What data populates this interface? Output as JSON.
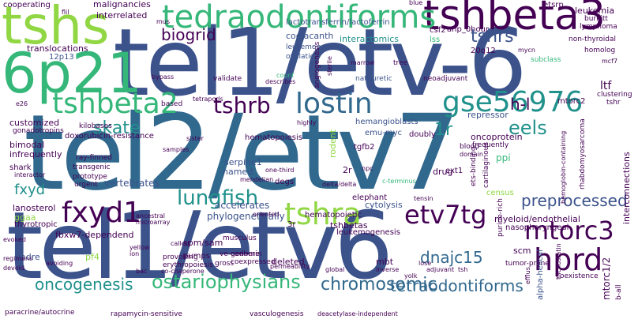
{
  "palette": {
    "dark_purple": "#440154",
    "indigo": "#3b528b",
    "blue": "#31688e",
    "teal": "#21918c",
    "green": "#35b779",
    "lime": "#90d743",
    "yellow_green": "#b5de2b"
  },
  "words": [
    {
      "id": "tel2-etv7",
      "text": "tel2/etv7"
    },
    {
      "id": "tel1-etv6-small",
      "text": "tel1/etv6"
    },
    {
      "id": "tel1-etv6-large",
      "text": "tel1/etv-6"
    },
    {
      "id": "tshs",
      "text": "tshs"
    },
    {
      "id": "6p21",
      "text": "6p21"
    },
    {
      "id": "tshbeta3",
      "text": "tshbeta3"
    },
    {
      "id": "tedraodontiforms",
      "text": "tedraodontiforms"
    },
    {
      "id": "tshbeta2",
      "text": "tshbeta2"
    },
    {
      "id": "lostin",
      "text": "lostin"
    },
    {
      "id": "gse56976",
      "text": "gse56976"
    },
    {
      "id": "tshrb",
      "text": "tshrb"
    },
    {
      "id": "fxyd1",
      "text": "fxyd1"
    },
    {
      "id": "hprd",
      "text": "hprd"
    },
    {
      "id": "mtorc3",
      "text": "mtorc3"
    },
    {
      "id": "etv7tg",
      "text": "etv7tg"
    },
    {
      "id": "tshra",
      "text": "tshra"
    },
    {
      "id": "lungfish",
      "text": "lungfish"
    },
    {
      "id": "preprocessed",
      "text": "preprocessed"
    },
    {
      "id": "chromosomic",
      "text": "chromosomic"
    },
    {
      "id": "tetraodontiforms",
      "text": "tetraodontiforms"
    },
    {
      "id": "ostariophysians",
      "text": "ostariophysians"
    },
    {
      "id": "oncogenesis",
      "text": "oncogenesis"
    },
    {
      "id": "dnajc15",
      "text": "dnajc15"
    },
    {
      "id": "biogrid",
      "text": "biogrid"
    },
    {
      "id": "tshrs",
      "text": "tshrs"
    },
    {
      "id": "skate",
      "text": "skate"
    },
    {
      "id": "eels",
      "text": "eels"
    },
    {
      "id": "1r",
      "text": "1r"
    },
    {
      "id": "h-l",
      "text": "h-l"
    },
    {
      "id": "fxyd",
      "text": "fxyd"
    },
    {
      "id": "cooperating",
      "text": "cooperating"
    },
    {
      "id": "malignancies",
      "text": "malignancies"
    },
    {
      "id": "interrelated",
      "text": "interrelated"
    },
    {
      "id": "lactotransferrin",
      "text": "lactotransferrin/lactoferrin"
    },
    {
      "id": "coelacanth",
      "text": "coelacanth"
    },
    {
      "id": "interactomics",
      "text": "interactomics"
    },
    {
      "id": "translocations",
      "text": "translocations"
    },
    {
      "id": "leukemogenic",
      "text": "leukemogenic"
    },
    {
      "id": "ovulation",
      "text": "ovulation"
    },
    {
      "id": "anp-0hour",
      "text": "anp_0hour"
    },
    {
      "id": "20q12",
      "text": "20q12"
    },
    {
      "id": "12p13",
      "text": "12p13"
    },
    {
      "id": "lss",
      "text": "lss"
    },
    {
      "id": "csf2",
      "text": "csf2"
    },
    {
      "id": "customized",
      "text": "customized"
    },
    {
      "id": "gonadotropins",
      "text": "gonadotropins"
    },
    {
      "id": "doxorubicin-resistance",
      "text": "doxorubicin-resistance"
    },
    {
      "id": "bimodal",
      "text": "bimodal"
    },
    {
      "id": "infrequently",
      "text": "infrequently"
    },
    {
      "id": "shark",
      "text": "shark"
    },
    {
      "id": "vertebrates",
      "text": "vertebrates"
    },
    {
      "id": "hemangioblasts",
      "text": "hemangioblasts"
    },
    {
      "id": "hematopoiesis",
      "text": "hematopoiesis"
    },
    {
      "id": "emu-myc",
      "text": "emu-myc"
    },
    {
      "id": "serpine1",
      "text": "serpine1"
    },
    {
      "id": "named",
      "text": "named"
    },
    {
      "id": "oncoprotein",
      "text": "oncoprotein"
    },
    {
      "id": "repressor",
      "text": "repressor"
    },
    {
      "id": "frequently",
      "text": "frequently"
    },
    {
      "id": "doubly",
      "text": "doubly"
    },
    {
      "id": "tgfb2",
      "text": "tgfb2"
    },
    {
      "id": "ppi",
      "text": "ppi"
    },
    {
      "id": "2r",
      "text": "2r"
    },
    {
      "id": "ext1",
      "text": "ext1"
    },
    {
      "id": "lanosterol",
      "text": "lanosterol"
    },
    {
      "id": "ggaa",
      "text": "ggaa"
    },
    {
      "id": "thyrotropic",
      "text": "thyrotropic"
    },
    {
      "id": "accelerates",
      "text": "accelerates"
    },
    {
      "id": "phylogenetically",
      "text": "phylogenetically"
    },
    {
      "id": "elephant",
      "text": "elephant"
    },
    {
      "id": "cytolysis",
      "text": "cytolysis"
    },
    {
      "id": "degs",
      "text": "degs"
    },
    {
      "id": "tshbetas",
      "text": "tshbetas"
    },
    {
      "id": "hematopoietic",
      "text": "hematopoietic"
    },
    {
      "id": "3r",
      "text": "3r"
    },
    {
      "id": "leukemogenesis",
      "text": "leukemogenesis"
    },
    {
      "id": "census",
      "text": "census"
    },
    {
      "id": "myeloid-endothelial",
      "text": "myeloid/endothelial"
    },
    {
      "id": "nasopharyngeal",
      "text": "nasopharyngeal"
    },
    {
      "id": "fbxw7-dependend",
      "text": "fbxw7-dependend"
    },
    {
      "id": "spm-sam",
      "text": "spm/sam"
    },
    {
      "id": "pumps",
      "text": "pumps"
    },
    {
      "id": "deleted",
      "text": "deleted"
    },
    {
      "id": "mbt",
      "text": "mbt"
    },
    {
      "id": "cadre",
      "text": "cadre"
    },
    {
      "id": "pf4",
      "text": "pf4"
    },
    {
      "id": "scm",
      "text": "scm"
    },
    {
      "id": "tumor-prone",
      "text": "tumor-prone"
    },
    {
      "id": "mtorc1-2",
      "text": "mtorc1/2"
    },
    {
      "id": "paracrine-autocrine",
      "text": "paracrine/autocrine"
    },
    {
      "id": "rapamycin-sensitive",
      "text": "rapamycin-sensitive"
    },
    {
      "id": "vasculogenesis",
      "text": "vasculogenesis"
    },
    {
      "id": "deacetylase-independent",
      "text": "deacetylase-independent"
    },
    {
      "id": "ve-cadherin",
      "text": "ve-cadherin"
    },
    {
      "id": "genome",
      "text": "genome"
    },
    {
      "id": "coexpressed",
      "text": "coexpressed"
    },
    {
      "id": "musculus",
      "text": "musculus"
    },
    {
      "id": "provoking",
      "text": "provoking"
    },
    {
      "id": "erythropoiesis",
      "text": "erythropoiesis"
    },
    {
      "id": "gross",
      "text": "gross"
    },
    {
      "id": "co-chaperone",
      "text": "co-chaperone"
    },
    {
      "id": "alpha-helical",
      "text": "alpha-helical"
    },
    {
      "id": "trichostatin",
      "text": "trichostatin"
    },
    {
      "id": "efflus",
      "text": "efflus"
    },
    {
      "id": "coexistence",
      "text": "coexistence"
    },
    {
      "id": "hemoglobin-containing",
      "text": "hemoglobin-containing"
    },
    {
      "id": "rhabdomyosarcoma",
      "text": "rhabdomyosarcoma"
    },
    {
      "id": "interconnections",
      "text": "interconnections"
    },
    {
      "id": "cartilaginous",
      "text": "cartilaginous"
    },
    {
      "id": "ets-binding",
      "text": "ets-binding"
    },
    {
      "id": "purine-rich",
      "text": "purine-rich"
    },
    {
      "id": "drug",
      "text": "drug"
    },
    {
      "id": "blood",
      "text": "blood"
    },
    {
      "id": "domain",
      "text": "domain"
    },
    {
      "id": "leukemia",
      "text": "leukemia"
    },
    {
      "id": "burkitt",
      "text": "burkitt"
    },
    {
      "id": "lymphoma",
      "text": "lymphoma"
    },
    {
      "id": "etsrp",
      "text": "etsrp"
    },
    {
      "id": "non-thyroidal",
      "text": "non-thyroidal"
    },
    {
      "id": "homolog",
      "text": "homolog"
    },
    {
      "id": "mtorc2",
      "text": "mtorc2"
    },
    {
      "id": "ltf",
      "text": "ltf"
    },
    {
      "id": "clustering",
      "text": "clustering"
    },
    {
      "id": "tshr",
      "text": "tshr"
    },
    {
      "id": "subclass",
      "text": "subclass"
    },
    {
      "id": "neoadjuvant",
      "text": "neoadjuvant"
    },
    {
      "id": "natriuretic",
      "text": "natriuretic"
    },
    {
      "id": "tree",
      "text": "tree"
    },
    {
      "id": "angiogenesis",
      "text": "angiogenesis"
    },
    {
      "id": "marrow",
      "text": "marrow"
    },
    {
      "id": "validate",
      "text": "validate"
    },
    {
      "id": "bypass",
      "text": "bypass"
    },
    {
      "id": "tetrapods",
      "text": "tetrapods"
    },
    {
      "id": "based",
      "text": "based"
    },
    {
      "id": "kilobases",
      "text": "kilobases"
    },
    {
      "id": "sister",
      "text": "sister"
    },
    {
      "id": "samples",
      "text": "samples"
    },
    {
      "id": "highly",
      "text": "highly"
    },
    {
      "id": "ray-finned",
      "text": "ray-finned"
    },
    {
      "id": "transgenic",
      "text": "transgenic"
    },
    {
      "id": "prototype",
      "text": "prototype"
    },
    {
      "id": "urgent",
      "text": "urgent"
    },
    {
      "id": "interactor",
      "text": "interactor"
    },
    {
      "id": "mendelian",
      "text": "mendelian"
    },
    {
      "id": "one-third",
      "text": "one-third"
    },
    {
      "id": "delta-delta",
      "text": "delta/delta"
    },
    {
      "id": "c-terminus",
      "text": "c-terminus"
    },
    {
      "id": "npc",
      "text": "npc"
    },
    {
      "id": "tensin",
      "text": "tensin"
    },
    {
      "id": "rodent",
      "text": "rodent"
    },
    {
      "id": "ancestral",
      "text": "ancestral"
    },
    {
      "id": "microarray",
      "text": "microarray"
    },
    {
      "id": "oriented",
      "text": "oriented"
    },
    {
      "id": "evoked",
      "text": "evoked"
    },
    {
      "id": "regimens",
      "text": "regimens"
    },
    {
      "id": "devoid",
      "text": "devoid"
    },
    {
      "id": "avoiding",
      "text": "avoiding"
    },
    {
      "id": "yellow",
      "text": "yellow"
    },
    {
      "id": "ion",
      "text": "ion"
    },
    {
      "id": "bac",
      "text": "bac"
    },
    {
      "id": "called",
      "text": "called"
    },
    {
      "id": "permeability",
      "text": "permeability"
    },
    {
      "id": "global",
      "text": "global"
    },
    {
      "id": "inverse",
      "text": "inverse"
    },
    {
      "id": "lose",
      "text": "lose"
    },
    {
      "id": "adjuvant",
      "text": "adjuvant"
    },
    {
      "id": "tsh",
      "text": "tsh"
    },
    {
      "id": "yolk",
      "text": "yolk"
    },
    {
      "id": "e26",
      "text": "e26"
    },
    {
      "id": "flil",
      "text": "flil"
    },
    {
      "id": "mus",
      "text": "mus"
    },
    {
      "id": "blue",
      "text": "blue"
    },
    {
      "id": "sterile",
      "text": "sterile"
    },
    {
      "id": "count",
      "text": "count"
    },
    {
      "id": "describes",
      "text": "describes"
    },
    {
      "id": "mycn",
      "text": "mycn"
    },
    {
      "id": "mcf7",
      "text": "mcf7"
    },
    {
      "id": "b-all",
      "text": "b-all"
    }
  ]
}
